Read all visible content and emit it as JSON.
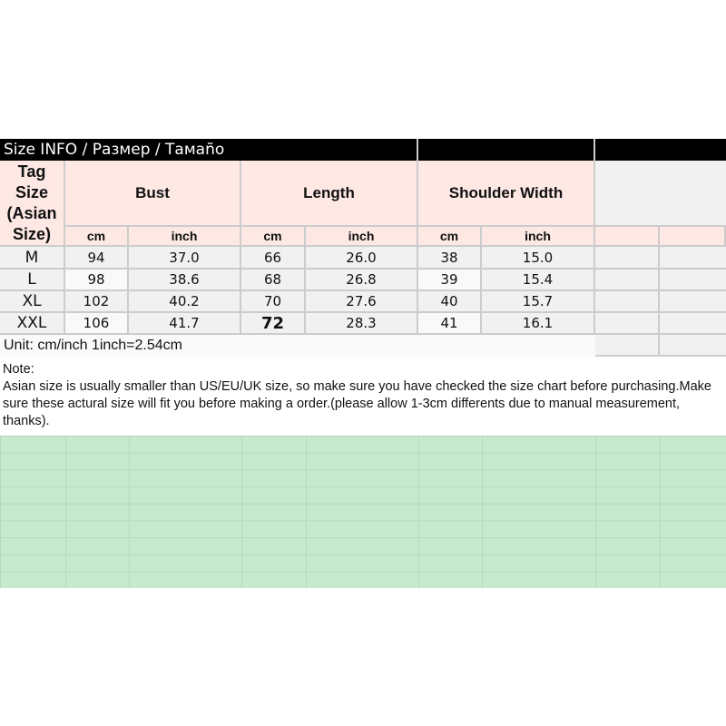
{
  "title": "Size INFO / Размер / Тамаño",
  "headers": {
    "tag_size": "Tag Size (Asian Size)",
    "bust": "Bust",
    "length": "Length",
    "shoulder": "Shoulder Width",
    "cm": "cm",
    "inch": "inch"
  },
  "rows": [
    {
      "size": "M",
      "bust_cm": "94",
      "bust_in": "37.0",
      "len_cm": "66",
      "len_in": "26.0",
      "sh_cm": "38",
      "sh_in": "15.0"
    },
    {
      "size": "L",
      "bust_cm": "98",
      "bust_in": "38.6",
      "len_cm": "68",
      "len_in": "26.8",
      "sh_cm": "39",
      "sh_in": "15.4"
    },
    {
      "size": "XL",
      "bust_cm": "102",
      "bust_in": "40.2",
      "len_cm": "70",
      "len_in": "27.6",
      "sh_cm": "40",
      "sh_in": "15.7"
    },
    {
      "size": "XXL",
      "bust_cm": "106",
      "bust_in": "41.7",
      "len_cm": "72",
      "len_in": "28.3",
      "sh_cm": "41",
      "sh_in": "16.1"
    }
  ],
  "unit": "Unit: cm/inch 1inch=2.54cm",
  "note": {
    "label": "Note:",
    "text": "Asian size is usually smaller than US/EU/UK size, so make sure you have checked the size chart before purchasing.Make sure these actural size will fit you before making a order.(please allow 1-3cm differents due to manual measurement, thanks)."
  }
}
